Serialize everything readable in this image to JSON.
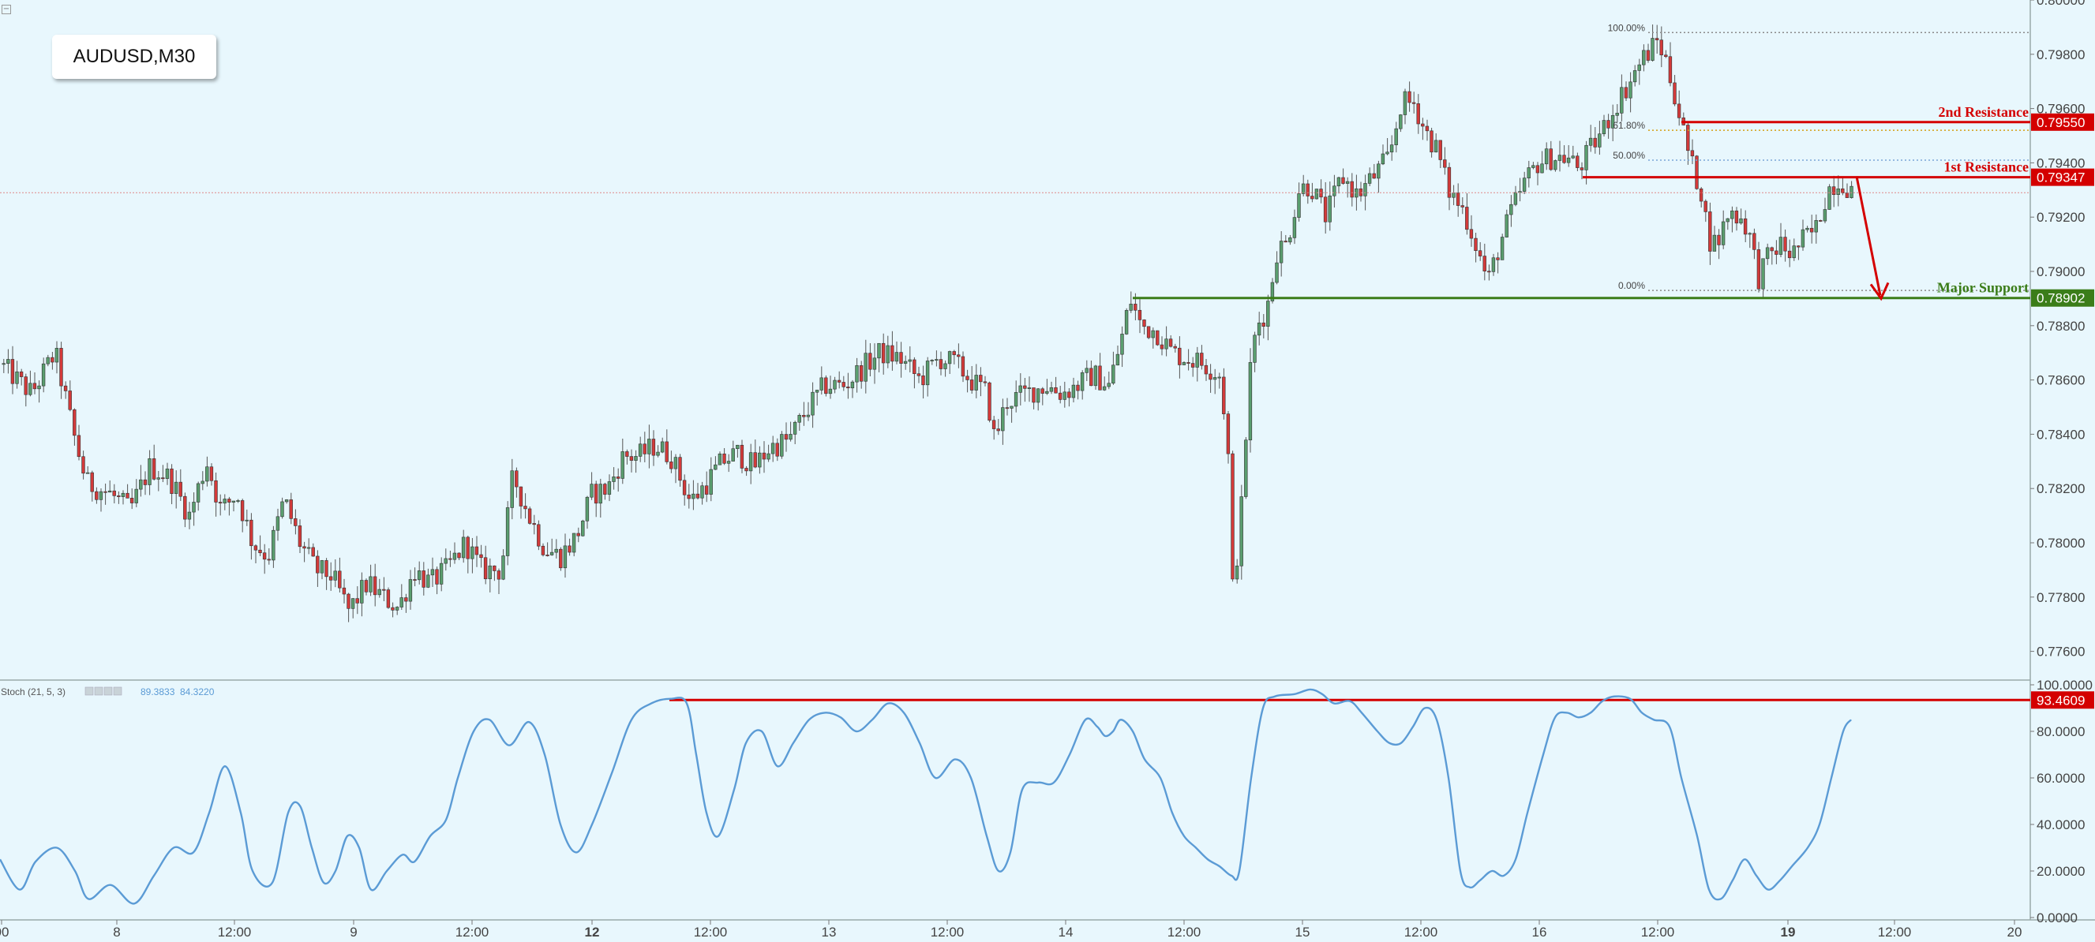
{
  "symbol_label": "AUDUSD,M30",
  "collapse_icon": "minus-square-icon",
  "colors": {
    "background": "#e8f7fd",
    "bull": "#5a9e6f",
    "bear": "#d33a3a",
    "resistance": "#d40000",
    "support": "#3b7d19",
    "stoch_line": "#5b9bd5",
    "fib_100": "#8a8a8a",
    "fib_618": "#d4a017",
    "fib_50": "#7aa6d6",
    "fib_0": "#8a8a8a"
  },
  "chart_data": [
    {
      "type": "candlestick",
      "title": "AUDUSD,M30",
      "ylim": [
        0.775,
        0.8
      ],
      "y_ticks": [
        "0.80000",
        "0.79800",
        "0.79600",
        "0.79400",
        "0.79200",
        "0.79000",
        "0.78800",
        "0.78600",
        "0.78400",
        "0.78200",
        "0.78000",
        "0.77800",
        "0.77600"
      ],
      "x_ticks": [
        "00",
        "8",
        "12:00",
        "9",
        "12:00",
        "12",
        "12:00",
        "13",
        "12:00",
        "14",
        "12:00",
        "15",
        "12:00",
        "16",
        "12:00",
        "19",
        "12:00",
        "20"
      ],
      "bold_x_ticks": [
        "12",
        "19"
      ],
      "price_path": [
        [
          0,
          0.7866
        ],
        [
          40,
          0.7855
        ],
        [
          70,
          0.787
        ],
        [
          95,
          0.7838
        ],
        [
          110,
          0.7822
        ],
        [
          140,
          0.7818
        ],
        [
          165,
          0.7812
        ],
        [
          190,
          0.7828
        ],
        [
          215,
          0.7824
        ],
        [
          240,
          0.781
        ],
        [
          262,
          0.783
        ],
        [
          280,
          0.7812
        ],
        [
          300,
          0.7818
        ],
        [
          320,
          0.78
        ],
        [
          340,
          0.7795
        ],
        [
          360,
          0.7816
        ],
        [
          380,
          0.78
        ],
        [
          400,
          0.779
        ],
        [
          420,
          0.7788
        ],
        [
          442,
          0.7775
        ],
        [
          465,
          0.7785
        ],
        [
          485,
          0.778
        ],
        [
          505,
          0.7776
        ],
        [
          525,
          0.779
        ],
        [
          545,
          0.7785
        ],
        [
          565,
          0.779
        ],
        [
          590,
          0.78
        ],
        [
          610,
          0.779
        ],
        [
          635,
          0.779
        ],
        [
          650,
          0.7825
        ],
        [
          670,
          0.781
        ],
        [
          690,
          0.7798
        ],
        [
          710,
          0.7795
        ],
        [
          730,
          0.7802
        ],
        [
          750,
          0.7818
        ],
        [
          770,
          0.782
        ],
        [
          790,
          0.7832
        ],
        [
          810,
          0.7832
        ],
        [
          830,
          0.7836
        ],
        [
          850,
          0.7832
        ],
        [
          875,
          0.7815
        ],
        [
          895,
          0.7822
        ],
        [
          915,
          0.783
        ],
        [
          935,
          0.7833
        ],
        [
          955,
          0.7828
        ],
        [
          975,
          0.7835
        ],
        [
          1000,
          0.7838
        ],
        [
          1020,
          0.7848
        ],
        [
          1045,
          0.7858
        ],
        [
          1070,
          0.7858
        ],
        [
          1095,
          0.7865
        ],
        [
          1115,
          0.787
        ],
        [
          1140,
          0.7868
        ],
        [
          1165,
          0.786
        ],
        [
          1190,
          0.7868
        ],
        [
          1210,
          0.7866
        ],
        [
          1230,
          0.786
        ],
        [
          1250,
          0.7855
        ],
        [
          1260,
          0.7838
        ],
        [
          1275,
          0.7852
        ],
        [
          1300,
          0.7855
        ],
        [
          1325,
          0.7858
        ],
        [
          1345,
          0.7855
        ],
        [
          1365,
          0.7858
        ],
        [
          1385,
          0.7862
        ],
        [
          1405,
          0.7858
        ],
        [
          1420,
          0.7874
        ],
        [
          1432,
          0.789
        ],
        [
          1445,
          0.788
        ],
        [
          1465,
          0.7878
        ],
        [
          1485,
          0.787
        ],
        [
          1505,
          0.7868
        ],
        [
          1525,
          0.7866
        ],
        [
          1545,
          0.7862
        ],
        [
          1555,
          0.784
        ],
        [
          1562,
          0.778
        ],
        [
          1568,
          0.7798
        ],
        [
          1575,
          0.782
        ],
        [
          1582,
          0.786
        ],
        [
          1592,
          0.788
        ],
        [
          1605,
          0.7886
        ],
        [
          1618,
          0.7908
        ],
        [
          1630,
          0.791
        ],
        [
          1645,
          0.793
        ],
        [
          1660,
          0.7932
        ],
        [
          1680,
          0.792
        ],
        [
          1700,
          0.7935
        ],
        [
          1720,
          0.7928
        ],
        [
          1740,
          0.7935
        ],
        [
          1760,
          0.7942
        ],
        [
          1775,
          0.7962
        ],
        [
          1792,
          0.7962
        ],
        [
          1805,
          0.7952
        ],
        [
          1820,
          0.7945
        ],
        [
          1835,
          0.793
        ],
        [
          1855,
          0.7922
        ],
        [
          1870,
          0.791
        ],
        [
          1885,
          0.7896
        ],
        [
          1900,
          0.791
        ],
        [
          1915,
          0.7922
        ],
        [
          1930,
          0.7932
        ],
        [
          1948,
          0.794
        ],
        [
          1965,
          0.7942
        ],
        [
          1985,
          0.7942
        ],
        [
          2000,
          0.7938
        ],
        [
          2015,
          0.7945
        ],
        [
          2030,
          0.7952
        ],
        [
          2048,
          0.7962
        ],
        [
          2065,
          0.797
        ],
        [
          2080,
          0.7978
        ],
        [
          2092,
          0.7982
        ],
        [
          2100,
          0.7985
        ],
        [
          2110,
          0.7978
        ],
        [
          2122,
          0.7965
        ],
        [
          2132,
          0.7952
        ],
        [
          2142,
          0.794
        ],
        [
          2155,
          0.793
        ],
        [
          2165,
          0.7912
        ],
        [
          2175,
          0.791
        ],
        [
          2190,
          0.7922
        ],
        [
          2205,
          0.792
        ],
        [
          2215,
          0.7915
        ],
        [
          2228,
          0.7898
        ],
        [
          2240,
          0.7905
        ],
        [
          2255,
          0.791
        ],
        [
          2270,
          0.7906
        ],
        [
          2285,
          0.7912
        ],
        [
          2300,
          0.7915
        ],
        [
          2315,
          0.793
        ],
        [
          2325,
          0.7933
        ],
        [
          2335,
          0.7933
        ],
        [
          2345,
          0.793
        ]
      ],
      "horizontal_lines": [
        {
          "label": "2nd Resistance",
          "value": 0.7955,
          "price_label": "0.79550",
          "color": "#d40000"
        },
        {
          "label": "1st Resistance",
          "value": 0.79347,
          "price_label": "0.79347",
          "color": "#d40000"
        },
        {
          "label": "Major Support",
          "value": 0.78902,
          "price_label": "0.78902",
          "color": "#3b7d19"
        }
      ],
      "fibonacci_levels": [
        {
          "label": "100.00%",
          "value": 0.7988
        },
        {
          "label": "61.80%",
          "value": 0.7952
        },
        {
          "label": "50.00%",
          "value": 0.7941
        },
        {
          "label": "0.00%",
          "value": 0.7893
        }
      ],
      "current_price_line": 0.7929,
      "projection_arrow": {
        "from": 0.7935,
        "to": 0.789
      }
    },
    {
      "type": "line",
      "title": "Stoch (21, 5, 3)",
      "indicator_values": [
        "89.3833",
        "84.3220"
      ],
      "ylim": [
        0,
        100
      ],
      "y_ticks": [
        "100.0000",
        "80.0000",
        "60.0000",
        "40.0000",
        "20.0000",
        "0.0000"
      ],
      "level_line": {
        "value": 93.4609,
        "label": "93.4609"
      },
      "series": [
        {
          "values": [
            [
              0,
              25
            ],
            [
              25,
              12
            ],
            [
              45,
              24
            ],
            [
              72,
              30
            ],
            [
              95,
              20
            ],
            [
              112,
              8
            ],
            [
              140,
              14
            ],
            [
              170,
              6
            ],
            [
              195,
              18
            ],
            [
              220,
              30
            ],
            [
              245,
              28
            ],
            [
              265,
              45
            ],
            [
              285,
              65
            ],
            [
              305,
              45
            ],
            [
              320,
              20
            ],
            [
              345,
              15
            ],
            [
              365,
              45
            ],
            [
              380,
              48
            ],
            [
              395,
              30
            ],
            [
              410,
              15
            ],
            [
              425,
              20
            ],
            [
              440,
              35
            ],
            [
              455,
              30
            ],
            [
              470,
              12
            ],
            [
              490,
              20
            ],
            [
              510,
              27
            ],
            [
              525,
              24
            ],
            [
              545,
              35
            ],
            [
              565,
              42
            ],
            [
              580,
              60
            ],
            [
              600,
              80
            ],
            [
              620,
              85
            ],
            [
              645,
              74
            ],
            [
              670,
              84
            ],
            [
              690,
              70
            ],
            [
              710,
              40
            ],
            [
              730,
              28
            ],
            [
              750,
              40
            ],
            [
              775,
              62
            ],
            [
              800,
              85
            ],
            [
              825,
              92
            ],
            [
              850,
              94
            ],
            [
              870,
              92
            ],
            [
              882,
              70
            ],
            [
              895,
              45
            ],
            [
              910,
              35
            ],
            [
              930,
              55
            ],
            [
              945,
              75
            ],
            [
              965,
              80
            ],
            [
              985,
              65
            ],
            [
              1005,
              75
            ],
            [
              1025,
              85
            ],
            [
              1045,
              88
            ],
            [
              1065,
              86
            ],
            [
              1085,
              80
            ],
            [
              1105,
              85
            ],
            [
              1125,
              92
            ],
            [
              1145,
              88
            ],
            [
              1165,
              75
            ],
            [
              1185,
              60
            ],
            [
              1210,
              68
            ],
            [
              1230,
              60
            ],
            [
              1250,
              35
            ],
            [
              1265,
              20
            ],
            [
              1280,
              28
            ],
            [
              1295,
              55
            ],
            [
              1315,
              58
            ],
            [
              1335,
              58
            ],
            [
              1355,
              70
            ],
            [
              1375,
              85
            ],
            [
              1390,
              82
            ],
            [
              1400,
              78
            ],
            [
              1410,
              80
            ],
            [
              1420,
              85
            ],
            [
              1435,
              80
            ],
            [
              1450,
              68
            ],
            [
              1470,
              60
            ],
            [
              1485,
              45
            ],
            [
              1500,
              35
            ],
            [
              1515,
              30
            ],
            [
              1530,
              25
            ],
            [
              1545,
              22
            ],
            [
              1560,
              18
            ],
            [
              1570,
              20
            ],
            [
              1585,
              60
            ],
            [
              1600,
              90
            ],
            [
              1615,
              95
            ],
            [
              1640,
              96
            ],
            [
              1660,
              98
            ],
            [
              1675,
              96
            ],
            [
              1690,
              92
            ],
            [
              1710,
              93
            ],
            [
              1725,
              88
            ],
            [
              1745,
              80
            ],
            [
              1760,
              75
            ],
            [
              1775,
              75
            ],
            [
              1790,
              82
            ],
            [
              1805,
              90
            ],
            [
              1820,
              85
            ],
            [
              1835,
              60
            ],
            [
              1850,
              20
            ],
            [
              1862,
              13
            ],
            [
              1875,
              16
            ],
            [
              1890,
              20
            ],
            [
              1905,
              18
            ],
            [
              1920,
              25
            ],
            [
              1935,
              45
            ],
            [
              1955,
              70
            ],
            [
              1970,
              86
            ],
            [
              1985,
              88
            ],
            [
              2000,
              86
            ],
            [
              2015,
              88
            ],
            [
              2030,
              93
            ],
            [
              2045,
              95
            ],
            [
              2065,
              94
            ],
            [
              2080,
              88
            ],
            [
              2095,
              85
            ],
            [
              2115,
              82
            ],
            [
              2130,
              60
            ],
            [
              2150,
              35
            ],
            [
              2165,
              12
            ],
            [
              2180,
              8
            ],
            [
              2195,
              16
            ],
            [
              2210,
              25
            ],
            [
              2225,
              18
            ],
            [
              2240,
              12
            ],
            [
              2255,
              16
            ],
            [
              2270,
              22
            ],
            [
              2290,
              30
            ],
            [
              2305,
              40
            ],
            [
              2320,
              60
            ],
            [
              2335,
              80
            ],
            [
              2345,
              85
            ]
          ]
        }
      ]
    }
  ]
}
